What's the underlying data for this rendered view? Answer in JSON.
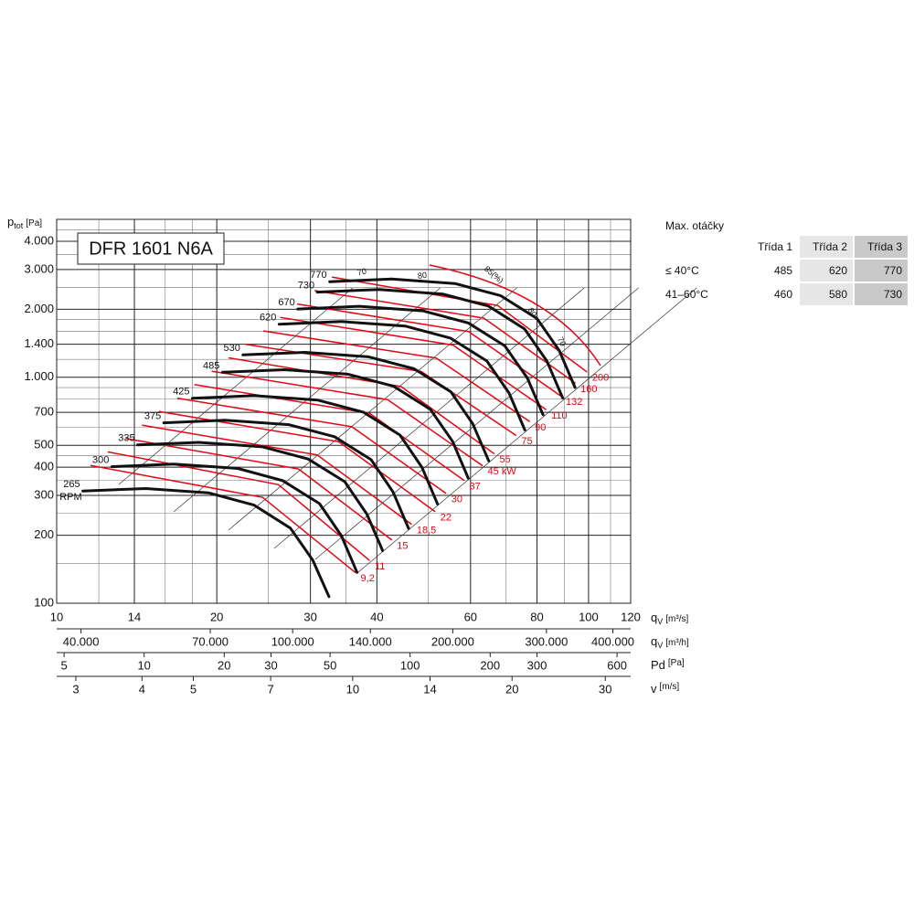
{
  "chart_data": {
    "type": "line",
    "title": "DFR 1601 N6A",
    "y_label": {
      "text": "p",
      "sub": "tot",
      "unit": "[Pa]"
    },
    "x_label": {
      "text": "q",
      "sub": "V",
      "unit": "[m³/s]"
    },
    "log_x": true,
    "log_y": true,
    "grid": true,
    "xlim": [
      10,
      120
    ],
    "ylim": [
      100,
      5000
    ],
    "xticks": [
      10,
      14,
      20,
      30,
      40,
      60,
      80,
      100,
      120
    ],
    "x_minor_ticks": [
      12,
      16,
      18,
      25,
      35,
      50,
      70,
      90,
      110
    ],
    "yticks": [
      100,
      200,
      300,
      400,
      500,
      700,
      {
        "value": 1000,
        "label": "1.000"
      },
      {
        "value": 1400,
        "label": "1.400"
      },
      {
        "value": 2000,
        "label": "2.000"
      },
      {
        "value": 3000,
        "label": "3.000"
      },
      {
        "value": 4000,
        "label": "4.000"
      }
    ],
    "y_minor_ticks": [
      150,
      250,
      350,
      450,
      600,
      800,
      900,
      1200,
      1600,
      1800,
      2500,
      3500,
      4500
    ],
    "rpm_unit": "RPM",
    "series": [
      {
        "name": "265",
        "color": "#111111",
        "x": [
          11.2,
          14.7,
          19.3,
          23.5,
          27.5,
          30.3,
          32.5
        ],
        "values": [
          314,
          322,
          308,
          272,
          215,
          155,
          107
        ]
      },
      {
        "name": "300",
        "color": "#111111",
        "x": [
          12.7,
          16.6,
          21.9,
          26.6,
          31.2,
          34.3,
          36.7
        ],
        "values": [
          402,
          413,
          395,
          349,
          276,
          199,
          137
        ]
      },
      {
        "name": "335",
        "color": "#111111",
        "x": [
          14.2,
          18.5,
          24.4,
          29.7,
          34.8,
          38.3,
          41.0
        ],
        "values": [
          502,
          515,
          492,
          435,
          345,
          248,
          171
        ]
      },
      {
        "name": "375",
        "color": "#111111",
        "x": [
          15.9,
          20.7,
          27.3,
          33.3,
          39.0,
          42.9,
          45.9
        ],
        "values": [
          629,
          646,
          617,
          546,
          432,
          311,
          214
        ]
      },
      {
        "name": "425",
        "color": "#111111",
        "x": [
          18.0,
          23.5,
          31.0,
          37.7,
          44.2,
          48.6,
          52.0
        ],
        "values": [
          807,
          829,
          792,
          701,
          555,
          400,
          275
        ]
      },
      {
        "name": "485",
        "color": "#111111",
        "x": [
          20.5,
          26.8,
          35.3,
          43.0,
          50.4,
          55.5,
          59.4
        ],
        "values": [
          1052,
          1080,
          1032,
          913,
          722,
          521,
          358
        ]
      },
      {
        "name": "530",
        "color": "#111111",
        "x": [
          22.4,
          29.3,
          38.6,
          47.0,
          55.1,
          60.6,
          64.9
        ],
        "values": [
          1256,
          1290,
          1232,
          1090,
          862,
          622,
          427
        ]
      },
      {
        "name": "620",
        "color": "#111111",
        "x": [
          26.2,
          34.3,
          45.2,
          55.0,
          64.4,
          70.9,
          75.9
        ],
        "values": [
          1718,
          1765,
          1686,
          1491,
          1180,
          851,
          585
        ]
      },
      {
        "name": "670",
        "color": "#111111",
        "x": [
          28.4,
          37.1,
          48.8,
          59.4,
          69.6,
          76.7,
          82.1
        ],
        "values": [
          2006,
          2061,
          1968,
          1741,
          1378,
          993,
          683
        ]
      },
      {
        "name": "730",
        "color": "#111111",
        "x": [
          30.9,
          40.4,
          53.2,
          64.8,
          75.8,
          83.5,
          89.4
        ],
        "values": [
          2382,
          2447,
          2337,
          2067,
          1636,
          1179,
          811
        ]
      },
      {
        "name": "770",
        "color": "#111111",
        "x": [
          32.6,
          42.6,
          56.1,
          68.3,
          80.0,
          88.1,
          94.3
        ],
        "values": [
          2650,
          2722,
          2600,
          2300,
          1820,
          1312,
          902
        ]
      }
    ],
    "power_curves": [
      {
        "name": "9,2",
        "color": "#e30613",
        "x": [
          11.6,
          24.4,
          36.4
        ],
        "values": [
          407,
          294,
          137
        ]
      },
      {
        "name": "11",
        "color": "#e30613",
        "x": [
          12.5,
          26.1,
          38.7
        ],
        "values": [
          467,
          335,
          155
        ]
      },
      {
        "name": "15",
        "color": "#e30613",
        "x": [
          13.5,
          28.5,
          42.6
        ],
        "values": [
          536,
          393,
          191
        ]
      },
      {
        "name": "18,5",
        "color": "#e30613",
        "x": [
          14.5,
          30.9,
          46.4
        ],
        "values": [
          614,
          453,
          224
        ]
      },
      {
        "name": "22",
        "color": "#e30613",
        "x": [
          15.6,
          33.9,
          51.4
        ],
        "values": [
          705,
          519,
          255
        ]
      },
      {
        "name": "30",
        "color": "#e30613",
        "x": [
          16.9,
          35.9,
          53.9
        ],
        "values": [
          808,
          604,
          307
        ]
      },
      {
        "name": "37",
        "color": "#e30613",
        "x": [
          18.2,
          38.8,
          58.3
        ],
        "values": [
          927,
          692,
          350
        ]
      },
      {
        "name": "45 kW",
        "color": "#e30613",
        "x": [
          19.6,
          41.9,
          63.1
        ],
        "values": [
          1063,
          796,
          407
        ]
      },
      {
        "name": "55",
        "color": "#e30613",
        "x": [
          21.1,
          44.4,
          66.4
        ],
        "values": [
          1218,
          910,
          460
        ]
      },
      {
        "name": "75",
        "color": "#e30613",
        "x": [
          22.7,
          48.5,
          73.0
        ],
        "values": [
          1398,
          1060,
          554
        ]
      },
      {
        "name": "90",
        "color": "#e30613",
        "x": [
          24.5,
          51.7,
          77.4
        ],
        "values": [
          1603,
          1216,
          638
        ]
      },
      {
        "name": "110",
        "color": "#e30613",
        "x": [
          26.4,
          55.6,
          83.1
        ],
        "values": [
          1839,
          1389,
          721
        ]
      },
      {
        "name": "132",
        "color": "#e30613",
        "x": [
          28.4,
          59.5,
          88.5
        ],
        "values": [
          2109,
          1594,
          829
        ]
      },
      {
        "name": "160",
        "color": "#e30613",
        "x": [
          30.6,
          63.6,
          94.3
        ],
        "values": [
          2419,
          1826,
          945
        ]
      },
      {
        "name": "200",
        "color": "#e30613",
        "x": [
          33.0,
          67.5,
          99.2
        ],
        "values": [
          2774,
          2078,
          1058
        ]
      }
    ],
    "efficiency_labels": [
      "70",
      "80",
      "85(%)",
      "80",
      "70"
    ],
    "secondary_x_axes": [
      {
        "label": {
          "text": "q",
          "sub": "V",
          "unit": "[m³/h]"
        },
        "xlim": [
          36000,
          432000
        ],
        "xticks": [
          {
            "value": 40000,
            "label": "40.000"
          },
          {
            "value": 70000,
            "label": "70.000"
          },
          {
            "value": 100000,
            "label": "100.000"
          },
          {
            "value": 140000,
            "label": "140.000"
          },
          {
            "value": 200000,
            "label": "200.000"
          },
          {
            "value": 300000,
            "label": "300.000"
          },
          {
            "value": 400000,
            "label": "400.000"
          }
        ]
      },
      {
        "label": {
          "text": "Pd",
          "unit": "[Pa]"
        },
        "xlim": [
          4.69,
          675
        ],
        "xticks": [
          5,
          10,
          20,
          30,
          50,
          100,
          200,
          300,
          600
        ]
      },
      {
        "label": {
          "text": "v",
          "unit": "[m/s]"
        },
        "xlim": [
          2.76,
          33.5
        ],
        "xticks": [
          3,
          4,
          5,
          7,
          10,
          14,
          20,
          30
        ]
      }
    ]
  },
  "table": {
    "title": "Max. otáčky",
    "header": [
      "Třída 1",
      "Třída 2",
      "Třída 3"
    ],
    "rows": [
      [
        "≤ 40°C",
        485,
        620,
        770
      ],
      [
        "41–60°C",
        460,
        580,
        730
      ]
    ]
  }
}
